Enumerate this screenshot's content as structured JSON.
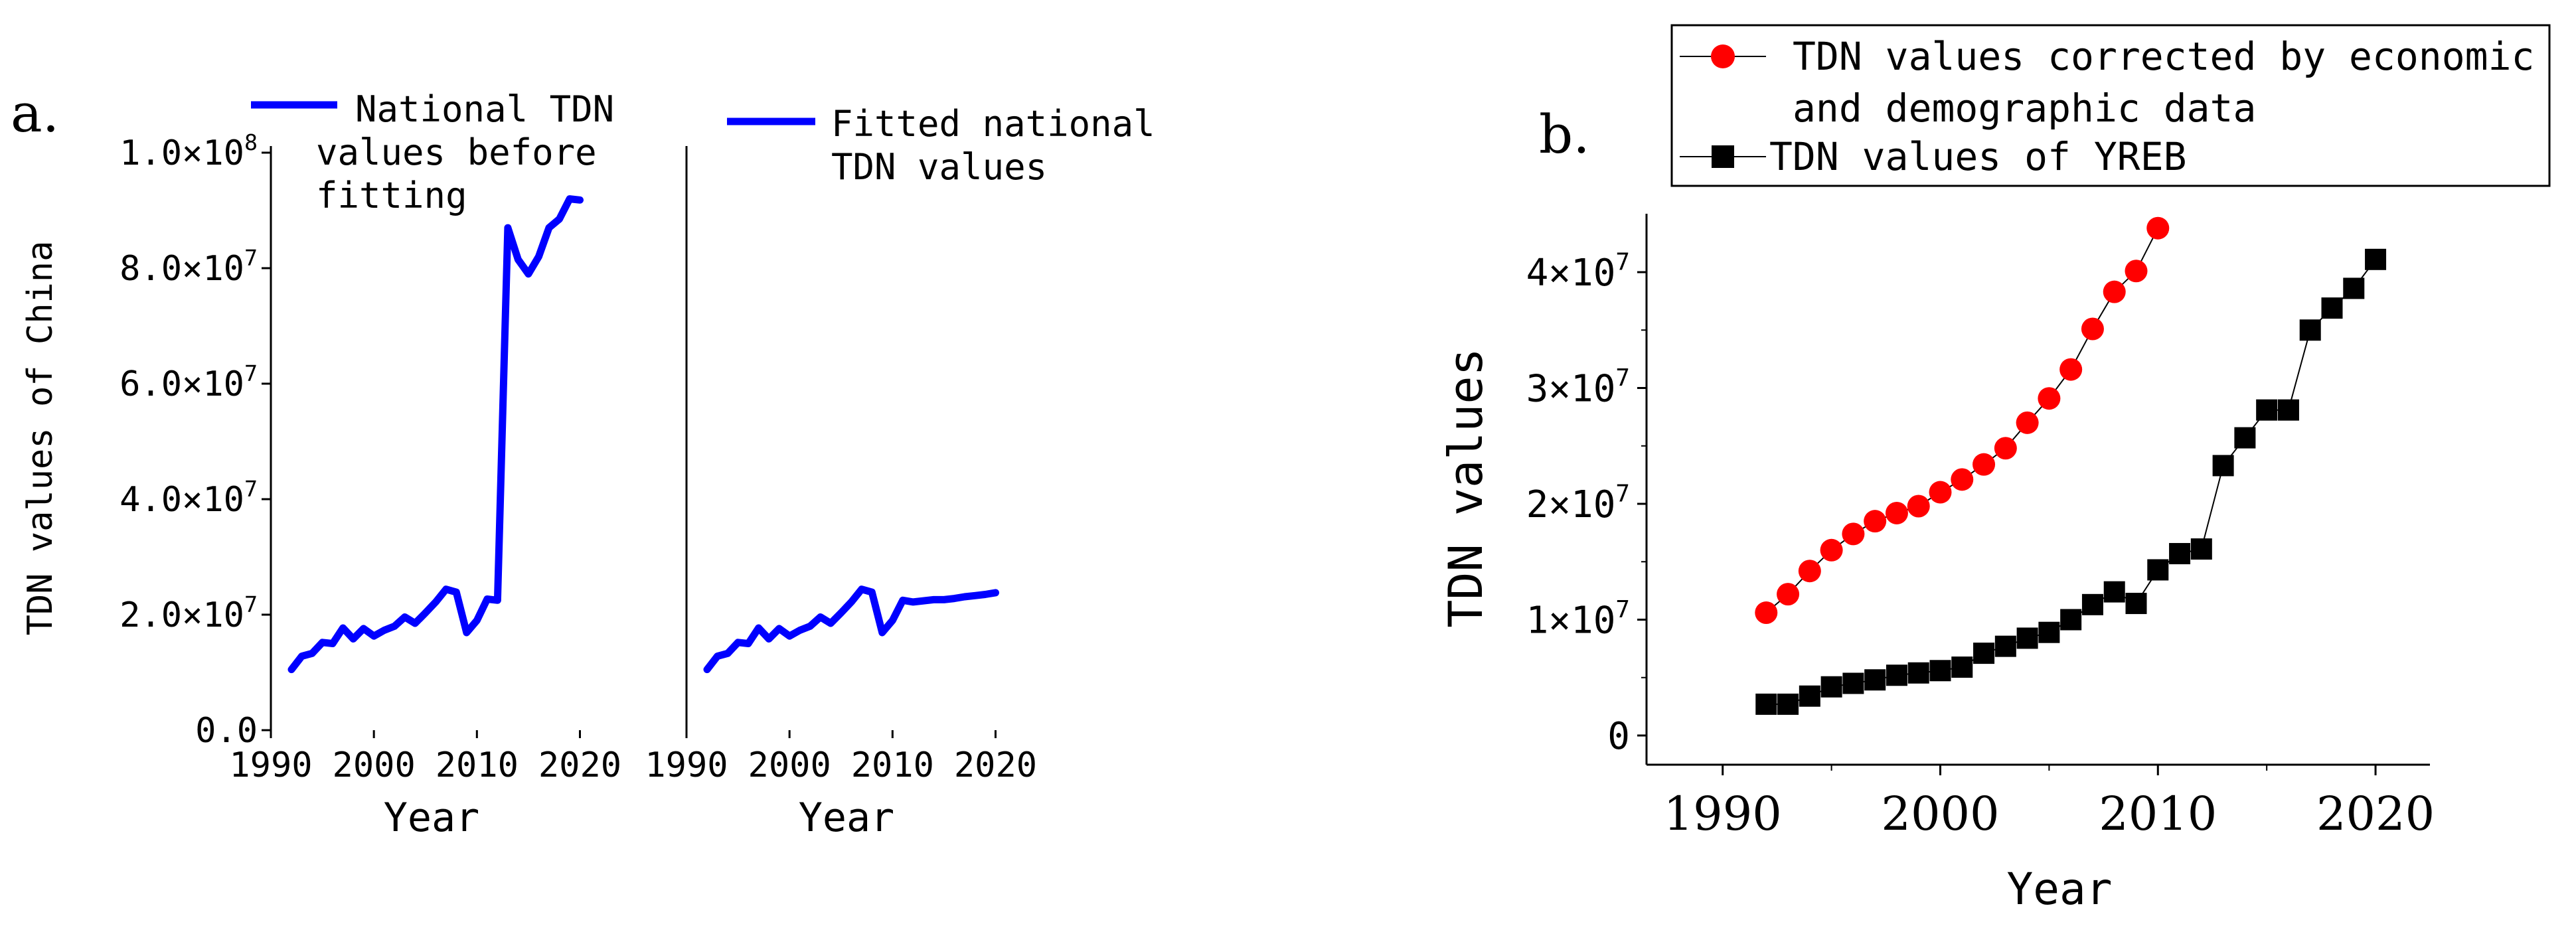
{
  "figure_a_label": "a.",
  "figure_b_label": "b.",
  "chart_data": [
    {
      "type": "line",
      "panel": "a-left",
      "ylabel": "TDN values of China",
      "xlabel": "Year",
      "xlim": [
        1990,
        2021
      ],
      "ylim": [
        0,
        100000000
      ],
      "xticks": [
        "1990",
        "2000",
        "2010",
        "2020"
      ],
      "xtick_values": [
        1990,
        2000,
        2010,
        2020
      ],
      "yticks": [
        {
          "value": 0,
          "base": "0.0",
          "exp": ""
        },
        {
          "value": 20000000,
          "base": "2.0×10",
          "exp": "7"
        },
        {
          "value": 40000000,
          "base": "4.0×10",
          "exp": "7"
        },
        {
          "value": 60000000,
          "base": "6.0×10",
          "exp": "7"
        },
        {
          "value": 80000000,
          "base": "8.0×10",
          "exp": "7"
        },
        {
          "value": 100000000,
          "base": "1.0×10",
          "exp": "8"
        }
      ],
      "legend": [
        "National TDN",
        "values before",
        "fitting"
      ],
      "color": "#0000ff",
      "series": [
        {
          "name": "National TDN values before fitting",
          "x": [
            1992,
            1993,
            1994,
            1995,
            1996,
            1997,
            1998,
            1999,
            2000,
            2001,
            2002,
            2003,
            2004,
            2005,
            2006,
            2007,
            2008,
            2009,
            2010,
            2011,
            2012,
            2013,
            2014,
            2015,
            2016,
            2017,
            2018,
            2019,
            2020
          ],
          "values": [
            10500000,
            12800000,
            13300000,
            15200000,
            15000000,
            17700000,
            15800000,
            17600000,
            16300000,
            17300000,
            18000000,
            19600000,
            18500000,
            20300000,
            22200000,
            24400000,
            23900000,
            16900000,
            19000000,
            22700000,
            22500000,
            87000000,
            81500000,
            79000000,
            82000000,
            87000000,
            88500000,
            92000000,
            91800000
          ]
        }
      ]
    },
    {
      "type": "line",
      "panel": "a-right",
      "xlabel": "Year",
      "xlim": [
        1990,
        2021
      ],
      "ylim": [
        0,
        100000000
      ],
      "xticks": [
        "1990",
        "2000",
        "2010",
        "2020"
      ],
      "xtick_values": [
        1990,
        2000,
        2010,
        2020
      ],
      "legend": [
        "Fitted national",
        "TDN values"
      ],
      "color": "#0000ff",
      "series": [
        {
          "name": "Fitted national TDN values",
          "x": [
            1992,
            1993,
            1994,
            1995,
            1996,
            1997,
            1998,
            1999,
            2000,
            2001,
            2002,
            2003,
            2004,
            2005,
            2006,
            2007,
            2008,
            2009,
            2010,
            2011,
            2012,
            2013,
            2014,
            2015,
            2016,
            2017,
            2018,
            2019,
            2020
          ],
          "values": [
            10500000,
            12800000,
            13300000,
            15200000,
            15000000,
            17700000,
            15800000,
            17600000,
            16300000,
            17300000,
            18000000,
            19600000,
            18500000,
            20300000,
            22200000,
            24400000,
            23900000,
            16900000,
            19000000,
            22500000,
            22200000,
            22400000,
            22600000,
            22600000,
            22800000,
            23100000,
            23300000,
            23500000,
            23800000
          ]
        }
      ]
    },
    {
      "type": "line",
      "panel": "b",
      "ylabel": "TDN values",
      "xlabel": "Year",
      "xlim": [
        1986.5,
        2022.5
      ],
      "ylim": [
        -1000000,
        45000000
      ],
      "xticks": [
        "1990",
        "2000",
        "2010",
        "2020"
      ],
      "xtick_values": [
        1990,
        2000,
        2010,
        2020
      ],
      "yticks": [
        {
          "value": 0,
          "base": "0",
          "exp": ""
        },
        {
          "value": 10000000,
          "base": "1×10",
          "exp": "7"
        },
        {
          "value": 20000000,
          "base": "2×10",
          "exp": "7"
        },
        {
          "value": 30000000,
          "base": "3×10",
          "exp": "7"
        },
        {
          "value": 40000000,
          "base": "4×10",
          "exp": "7"
        }
      ],
      "legend": [
        {
          "lines": [
            "TDN values corrected by economic",
            "and demographic data"
          ],
          "marker": "circle",
          "color": "#ff0000"
        },
        {
          "lines": [
            "TDN values of YREB"
          ],
          "marker": "square",
          "color": "#000000"
        }
      ],
      "series": [
        {
          "name": "TDN values corrected by economic and demographic data",
          "marker": "circle",
          "color": "#ff0000",
          "x": [
            1992,
            1993,
            1994,
            1995,
            1996,
            1997,
            1998,
            1999,
            2000,
            2001,
            2002,
            2003,
            2004,
            2005,
            2006,
            2007,
            2008,
            2009,
            2010
          ],
          "values": [
            10600000,
            12200000,
            14200000,
            16000000,
            17400000,
            18500000,
            19200000,
            19800000,
            21000000,
            22100000,
            23400000,
            24800000,
            27000000,
            29100000,
            31600000,
            35100000,
            38300000,
            40100000,
            43800000
          ]
        },
        {
          "name": "TDN values of YREB",
          "marker": "square",
          "color": "#000000",
          "x": [
            1992,
            1993,
            1994,
            1995,
            1996,
            1997,
            1998,
            1999,
            2000,
            2001,
            2002,
            2003,
            2004,
            2005,
            2006,
            2007,
            2008,
            2009,
            2010,
            2011,
            2012,
            2013,
            2014,
            2015,
            2016,
            2017,
            2018,
            2019,
            2020
          ],
          "values": [
            2700000,
            2700000,
            3400000,
            4200000,
            4500000,
            4800000,
            5200000,
            5400000,
            5600000,
            5900000,
            7100000,
            7700000,
            8400000,
            8900000,
            10000000,
            11300000,
            12400000,
            11400000,
            14300000,
            15700000,
            16100000,
            23300000,
            25700000,
            28100000,
            28100000,
            35000000,
            36900000,
            38600000,
            41100000
          ]
        }
      ]
    }
  ]
}
